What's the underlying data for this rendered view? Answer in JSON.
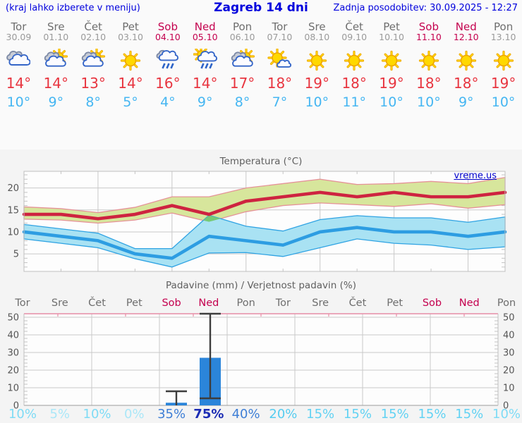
{
  "header": {
    "left_note": "(kraj lahko izberete v meniju)",
    "title": "Zagreb 14 dni",
    "updated": "Zadnja posodobitev: 30.09.2025 - 12:27"
  },
  "palette": {
    "link_blue": "#0000dd",
    "weekend_red": "#c4004e",
    "weekday_gray": "#6e6e6e",
    "date_gray": "#9a9a9a",
    "tmax_red": "#e8343f",
    "tmin_blue": "#45b6f2",
    "grid_gray": "#c9c9c9",
    "axis_text": "#555555",
    "plot_bg": "#fdfdfd",
    "panel_bg": "#f4f4f4",
    "bar_blue": "#2b85da",
    "whisker_dark": "#3d3d3d",
    "precip_top_pink": "#e78ca6",
    "max_line": "#ce2340",
    "max_band_fill": "#d7e69c",
    "max_band_edge": "#e59398",
    "min_line": "#2d9de2",
    "min_band_fill": "#a9e2f3",
    "min_band_edge": "#2fa3e3",
    "band_overlap_green": "#76ca76"
  },
  "days": [
    {
      "name": "Tor",
      "date": "30.09",
      "weekend": false,
      "icon": "cloudy",
      "tmax": "14°",
      "tmin": "10°"
    },
    {
      "name": "Sre",
      "date": "01.10",
      "weekend": false,
      "icon": "partly-cloudy",
      "tmax": "14°",
      "tmin": "9°"
    },
    {
      "name": "Čet",
      "date": "02.10",
      "weekend": false,
      "icon": "partly-cloudy",
      "tmax": "13°",
      "tmin": "8°"
    },
    {
      "name": "Pet",
      "date": "03.10",
      "weekend": false,
      "icon": "sunny",
      "tmax": "14°",
      "tmin": "5°"
    },
    {
      "name": "Sob",
      "date": "04.10",
      "weekend": true,
      "icon": "rain",
      "tmax": "16°",
      "tmin": "4°"
    },
    {
      "name": "Ned",
      "date": "05.10",
      "weekend": true,
      "icon": "sun-rain",
      "tmax": "14°",
      "tmin": "9°"
    },
    {
      "name": "Pon",
      "date": "06.10",
      "weekend": false,
      "icon": "partly-cloudy",
      "tmax": "17°",
      "tmin": "8°"
    },
    {
      "name": "Tor",
      "date": "07.10",
      "weekend": false,
      "icon": "mostly-sunny",
      "tmax": "18°",
      "tmin": "7°"
    },
    {
      "name": "Sre",
      "date": "08.10",
      "weekend": false,
      "icon": "sunny",
      "tmax": "19°",
      "tmin": "10°"
    },
    {
      "name": "Čet",
      "date": "09.10",
      "weekend": false,
      "icon": "sunny",
      "tmax": "18°",
      "tmin": "11°"
    },
    {
      "name": "Pet",
      "date": "10.10",
      "weekend": false,
      "icon": "sunny",
      "tmax": "19°",
      "tmin": "10°"
    },
    {
      "name": "Sob",
      "date": "11.10",
      "weekend": true,
      "icon": "sunny",
      "tmax": "18°",
      "tmin": "10°"
    },
    {
      "name": "Ned",
      "date": "12.10",
      "weekend": true,
      "icon": "sunny",
      "tmax": "18°",
      "tmin": "9°"
    },
    {
      "name": "Pon",
      "date": "13.10",
      "weekend": false,
      "icon": "sunny",
      "tmax": "19°",
      "tmin": "10°"
    }
  ],
  "chart_data": [
    {
      "type": "line",
      "title": "Temperatura (°C)",
      "watermark": "vreme.us",
      "x_categories": [
        "Tor 30.09",
        "Sre 01.10",
        "Čet 02.10",
        "Pet 03.10",
        "Sob 04.10",
        "Ned 05.10",
        "Pon 06.10",
        "Tor 07.10",
        "Sre 08.10",
        "Čet 09.10",
        "Pet 10.10",
        "Sob 11.10",
        "Ned 12.10",
        "Pon 13.10"
      ],
      "ylim": [
        1.0,
        23.8
      ],
      "yticks": [
        5,
        10,
        15,
        20
      ],
      "grid": "on",
      "legend": "none",
      "series": [
        {
          "name": "t_max",
          "color": "#ce2340",
          "values": [
            14,
            14,
            13,
            14,
            16,
            14,
            17,
            18,
            19,
            18,
            19,
            18,
            18,
            19
          ]
        },
        {
          "name": "t_max_range_hi",
          "color": "#d7e69c",
          "values": [
            15.7,
            15.3,
            14.4,
            15.6,
            18,
            18,
            20,
            21,
            22,
            20.8,
            21,
            21.5,
            21,
            22.4
          ]
        },
        {
          "name": "t_max_range_lo",
          "color": "#d7e69c",
          "values": [
            12.9,
            12.7,
            12,
            12.7,
            14.3,
            12.3,
            14.6,
            16,
            16.6,
            16.2,
            15.8,
            16.4,
            15.4,
            16.2
          ]
        },
        {
          "name": "t_min",
          "color": "#2d9de2",
          "values": [
            10,
            9,
            8,
            5,
            4,
            9,
            8,
            7,
            10,
            11,
            10,
            10,
            9,
            10
          ]
        },
        {
          "name": "t_min_range_hi",
          "color": "#a9e2f3",
          "values": [
            11.7,
            10.7,
            9.7,
            6.2,
            6.2,
            13.8,
            11.3,
            10.2,
            12.8,
            13.7,
            13.2,
            13.2,
            12.2,
            13.4
          ]
        },
        {
          "name": "t_min_range_lo",
          "color": "#a9e2f3",
          "values": [
            8.4,
            7.4,
            6.4,
            3.9,
            2,
            5.2,
            5.3,
            4.4,
            6.4,
            8.4,
            7.4,
            7,
            6,
            6.6
          ]
        }
      ]
    },
    {
      "type": "bar",
      "title": "Padavine (mm) / Verjetnost padavin (%)",
      "categories": [
        "Tor",
        "Sre",
        "Čet",
        "Pet",
        "Sob",
        "Ned",
        "Pon",
        "Tor",
        "Sre",
        "Čet",
        "Pet",
        "Sob",
        "Ned",
        "Pon"
      ],
      "weekend_idx": [
        4,
        5,
        11,
        12
      ],
      "values_mm": [
        0,
        0,
        0,
        0,
        1.5,
        27,
        0,
        0,
        0,
        0,
        0,
        0,
        0,
        0
      ],
      "whiskers": [
        {
          "index": 4,
          "low": 0,
          "high": 8
        },
        {
          "index": 5,
          "low": 4,
          "high": 52
        }
      ],
      "probabilities": [
        "10%",
        "5%",
        "10%",
        "0%",
        "35%",
        "75%",
        "40%",
        "20%",
        "15%",
        "15%",
        "15%",
        "15%",
        "15%",
        "10%"
      ],
      "prob_colors": [
        "#7edbf5",
        "#abe7f8",
        "#7edbf5",
        "#abe7f8",
        "#3f7fd6",
        "#1b2cb4",
        "#3f7fd6",
        "#55ccf0",
        "#62d2f3",
        "#62d2f3",
        "#62d2f3",
        "#62d2f3",
        "#62d2f3",
        "#7edbf5"
      ],
      "emphasis_index": 5,
      "ylim": [
        0,
        52
      ],
      "yticks": [
        0,
        10,
        20,
        30,
        40,
        50
      ],
      "grid": "on"
    }
  ]
}
